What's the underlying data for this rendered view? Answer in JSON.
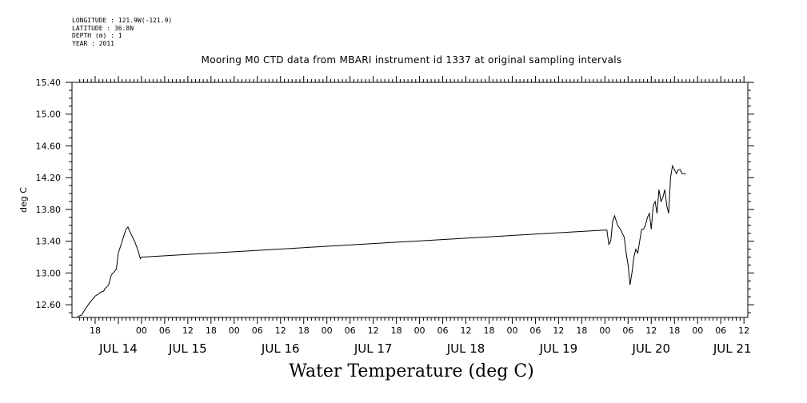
{
  "header": {
    "longitude": "LONGITUDE : 121.9W(-121.9)",
    "latitude": "LATITUDE : 36.8N",
    "depth": "DEPTH (m) : 1",
    "year": "YEAR : 2011",
    "title": "Mooring M0 CTD data from MBARI instrument id 1337 at original sampling intervals"
  },
  "figure_title": "Water Temperature (deg C)",
  "chart_data": {
    "type": "line",
    "title": "Mooring M0 CTD data from MBARI instrument id 1337 at original sampling intervals",
    "xlabel": "",
    "ylabel": "deg C",
    "ylim": [
      12.44,
      15.4
    ],
    "yticks": [
      "15.40",
      "15.00",
      "14.60",
      "14.20",
      "13.80",
      "13.40",
      "13.00",
      "12.60"
    ],
    "ytick_values": [
      15.4,
      15.0,
      14.6,
      14.2,
      13.8,
      13.4,
      13.0,
      12.6
    ],
    "x_unit": "hours since JUL 14 00:00 (2011)",
    "xlim": [
      -16.5,
      141
    ],
    "hour_ticks": [
      {
        "h": -12,
        "label": "18"
      },
      {
        "h": 0,
        "label": "00"
      },
      {
        "h": 6,
        "label": "06"
      },
      {
        "h": 12,
        "label": "12"
      },
      {
        "h": 18,
        "label": "18"
      },
      {
        "h": 24,
        "label": "00"
      },
      {
        "h": 30,
        "label": "06"
      },
      {
        "h": 36,
        "label": "12"
      },
      {
        "h": 42,
        "label": "18"
      },
      {
        "h": 48,
        "label": "00"
      },
      {
        "h": 54,
        "label": "06"
      },
      {
        "h": 60,
        "label": "12"
      },
      {
        "h": 66,
        "label": "18"
      },
      {
        "h": 72,
        "label": "00"
      },
      {
        "h": 78,
        "label": "06"
      },
      {
        "h": 84,
        "label": "12"
      },
      {
        "h": 90,
        "label": "18"
      },
      {
        "h": 96,
        "label": "00"
      },
      {
        "h": 102,
        "label": "06"
      },
      {
        "h": 108,
        "label": "12"
      },
      {
        "h": 114,
        "label": "18"
      },
      {
        "h": 120,
        "label": "00"
      },
      {
        "h": 126,
        "label": "06"
      },
      {
        "h": 132,
        "label": "12"
      }
    ],
    "day_labels": [
      {
        "h": -6,
        "label": "JUL 14"
      },
      {
        "h": 12,
        "label": "JUL 15"
      },
      {
        "h": 36,
        "label": "JUL 16"
      },
      {
        "h": 60,
        "label": "JUL 17"
      },
      {
        "h": 84,
        "label": "JUL 18"
      },
      {
        "h": 108,
        "label": "JUL 19"
      },
      {
        "h": 132,
        "label": "JUL 20"
      },
      {
        "h": 153,
        "label": "JUL 21"
      }
    ],
    "series": [
      {
        "color": "#000000",
        "x": [
          -16.5,
          -15.5,
          -14.5,
          -13.5,
          -12.5,
          -12,
          -11,
          -10.5,
          -9.8,
          -9.5,
          -8.5,
          -7.8,
          -7.3,
          -6.5,
          -6,
          -5,
          -4.5,
          -4,
          -3.5,
          -3,
          -2.3,
          -1.8,
          -1,
          -0.3,
          0,
          0.3,
          120,
          120.5,
          121,
          121.5,
          122,
          122.5,
          123.3,
          124,
          124.5,
          125,
          125.5,
          126,
          126.5,
          127,
          127.5,
          128,
          128.5,
          129,
          129.5,
          130,
          130.5,
          131,
          131.5,
          132,
          132.5,
          133,
          133.5,
          134,
          134.5,
          135,
          135.5,
          136,
          136.5,
          137,
          137.5,
          138,
          138.5,
          139,
          139.5,
          140,
          140.5,
          141
        ],
        "y": [
          12.45,
          12.47,
          12.55,
          12.62,
          12.68,
          12.71,
          12.74,
          12.76,
          12.77,
          12.8,
          12.85,
          12.98,
          13.0,
          13.05,
          13.25,
          13.4,
          13.48,
          13.55,
          13.58,
          13.52,
          13.45,
          13.4,
          13.3,
          13.18,
          13.2,
          13.2,
          13.54,
          13.54,
          13.36,
          13.4,
          13.65,
          13.72,
          13.6,
          13.55,
          13.5,
          13.45,
          13.25,
          13.1,
          12.85,
          13.0,
          13.2,
          13.3,
          13.25,
          13.4,
          13.55,
          13.55,
          13.6,
          13.7,
          13.75,
          13.55,
          13.85,
          13.9,
          13.75,
          14.05,
          13.9,
          13.95,
          14.05,
          13.85,
          13.75,
          14.2,
          14.35,
          14.3,
          14.25,
          14.3,
          14.3,
          14.25,
          14.25,
          14.25
        ]
      }
    ]
  }
}
